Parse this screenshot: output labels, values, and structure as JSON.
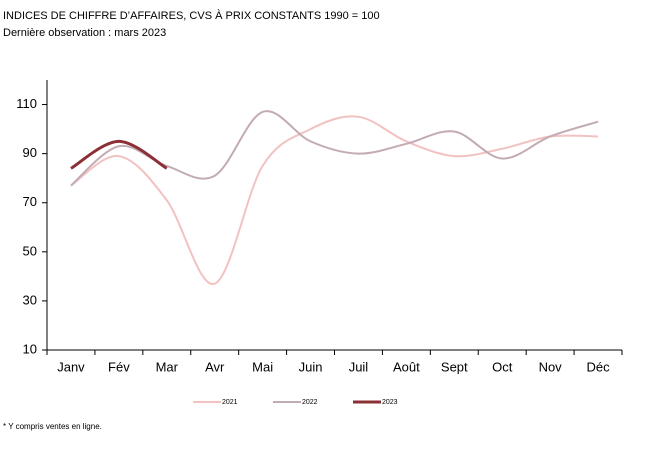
{
  "chart_data": {
    "type": "line",
    "title": "INDICES DE CHIFFRE D’AFFAIRES, CVS À PRIX CONSTANTS 1990 = 100",
    "subtitle": "Dernière observation : mars 2023",
    "footnote": "* Y compris ventes en ligne.",
    "categories": [
      "Janv",
      "Fév",
      "Mar",
      "Avr",
      "Mai",
      "Juin",
      "Juil",
      "Août",
      "Sept",
      "Oct",
      "Nov",
      "Déc"
    ],
    "series": [
      {
        "name": "2021",
        "color": "#f2c2c2",
        "values": [
          77,
          89,
          71,
          37,
          85,
          100,
          105,
          95,
          89,
          92,
          97,
          97
        ]
      },
      {
        "name": "2022",
        "color": "#c3abb2",
        "values": [
          77,
          93,
          85,
          81,
          107,
          95,
          90,
          94,
          99,
          88,
          97,
          103
        ]
      },
      {
        "name": "2023",
        "color": "#8c2f36",
        "values": [
          84,
          95,
          84,
          null,
          null,
          null,
          null,
          null,
          null,
          null,
          null,
          null
        ]
      }
    ],
    "ylim": [
      10,
      120
    ],
    "yticks": [
      10,
      30,
      50,
      70,
      90,
      110
    ]
  }
}
